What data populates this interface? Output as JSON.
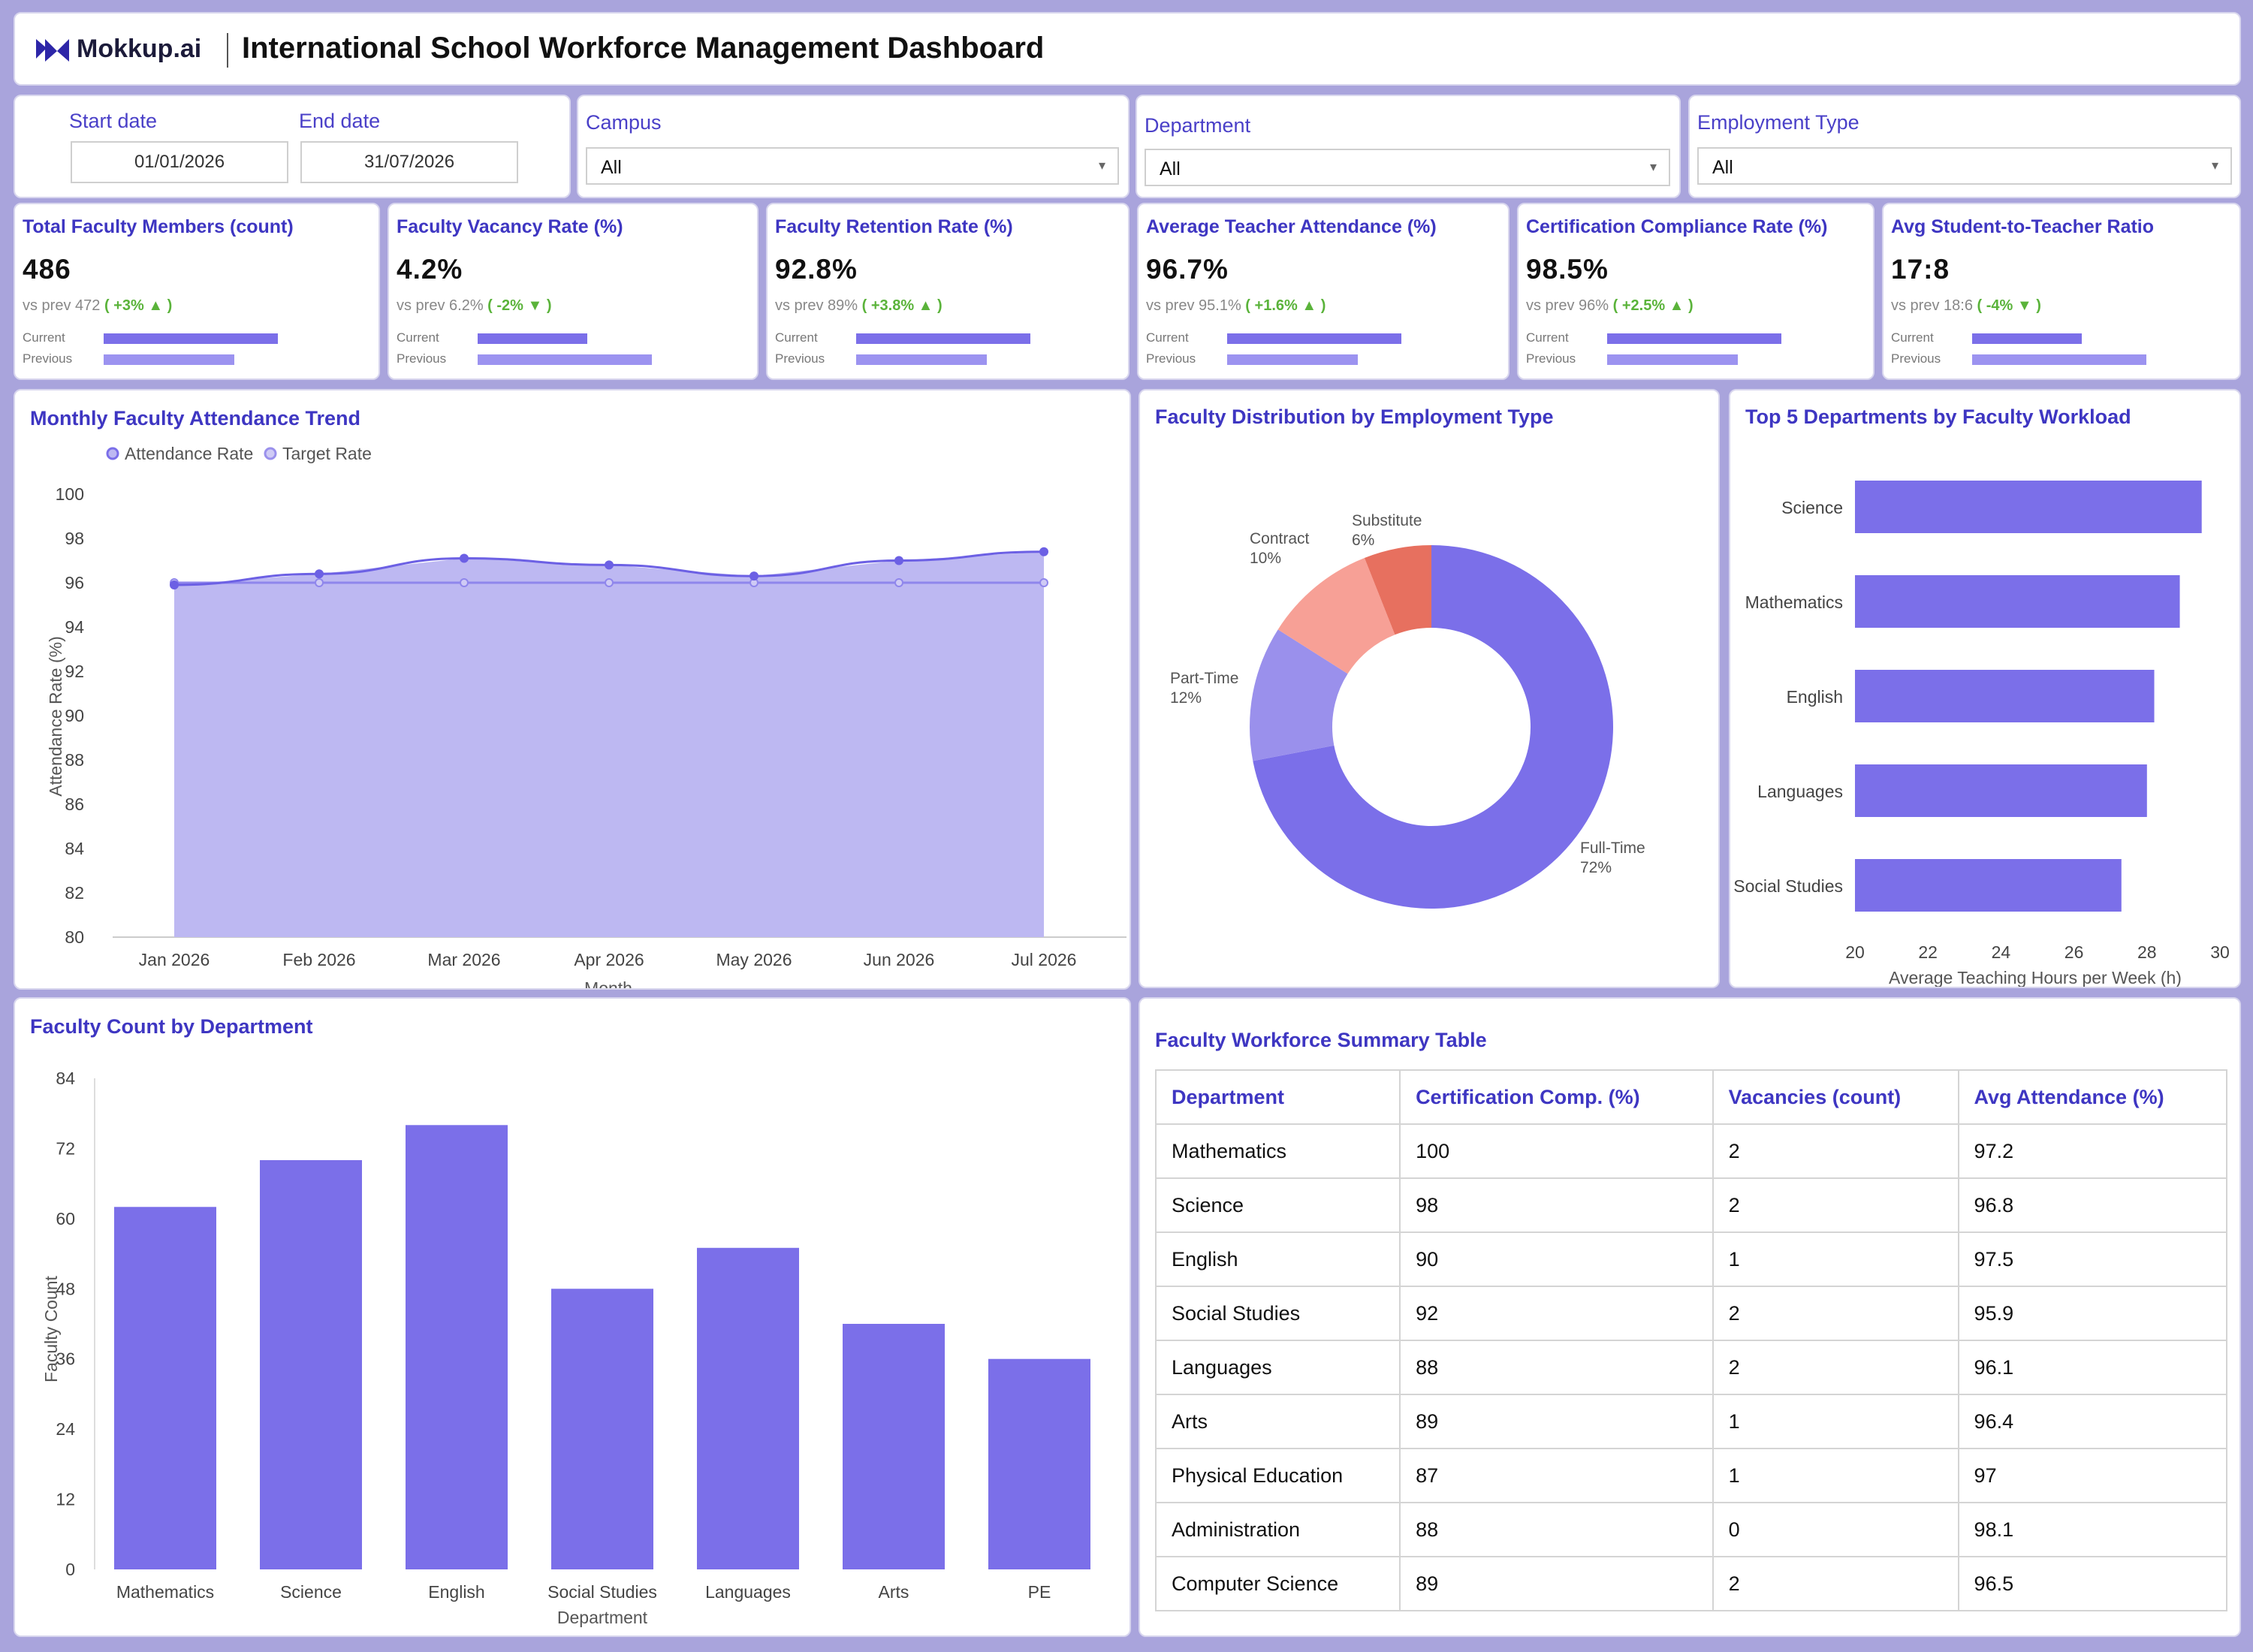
{
  "header": {
    "logo_text": "Mokkup.ai",
    "title": "International School Workforce Management Dashboard"
  },
  "filters": {
    "start_label": "Start date",
    "start_value": "01/01/2026",
    "end_label": "End date",
    "end_value": "31/07/2026",
    "campus_label": "Campus",
    "campus_value": "All",
    "department_label": "Department",
    "department_value": "All",
    "employment_label": "Employment Type",
    "employment_value": "All"
  },
  "kpis": [
    {
      "title": "Total Faculty Members (count)",
      "value": "486",
      "prev": "vs prev 472",
      "delta": "( +3% ▲ )",
      "current_label": "Current",
      "previous_label": "Previous",
      "current_frac": 1.0,
      "previous_frac": 0.75
    },
    {
      "title": "Faculty Vacancy Rate (%)",
      "value": "4.2%",
      "prev": "vs prev 6.2%",
      "delta": "( -2% ▼ )",
      "current_label": "Current",
      "previous_label": "Previous",
      "current_frac": 0.63,
      "previous_frac": 1.0
    },
    {
      "title": "Faculty Retention Rate (%)",
      "value": "92.8%",
      "prev": "vs prev 89%",
      "delta": "( +3.8% ▲ )",
      "current_label": "Current",
      "previous_label": "Previous",
      "current_frac": 1.0,
      "previous_frac": 0.75
    },
    {
      "title": "Average Teacher Attendance (%)",
      "value": "96.7%",
      "prev": "vs prev 95.1%",
      "delta": "( +1.6% ▲ )",
      "current_label": "Current",
      "previous_label": "Previous",
      "current_frac": 1.0,
      "previous_frac": 0.75
    },
    {
      "title": "Certification Compliance Rate (%)",
      "value": "98.5%",
      "prev": "vs prev 96%",
      "delta": "( +2.5% ▲ )",
      "current_label": "Current",
      "previous_label": "Previous",
      "current_frac": 1.0,
      "previous_frac": 0.75
    },
    {
      "title": "Avg Student-to-Teacher Ratio",
      "value": "17:8",
      "prev": "vs prev 18:6",
      "delta": "( -4% ▼ )",
      "current_label": "Current",
      "previous_label": "Previous",
      "current_frac": 0.63,
      "previous_frac": 1.0
    }
  ],
  "colors": {
    "accent": "#3e36c2",
    "bar": "#7b6fe9",
    "positive": "#5ab33a"
  },
  "chart_data": [
    {
      "type": "area",
      "title": "Monthly Faculty Attendance Trend",
      "xlabel": "Month",
      "ylabel": "Attendance Rate (%)",
      "categories": [
        "Jan 2026",
        "Feb 2026",
        "Mar 2026",
        "Apr 2026",
        "May 2026",
        "Jun 2026",
        "Jul 2026"
      ],
      "series": [
        {
          "name": "Attendance Rate",
          "values": [
            95.9,
            96.4,
            97.1,
            96.8,
            96.3,
            97.0,
            97.4
          ]
        },
        {
          "name": "Target Rate",
          "values": [
            96,
            96,
            96,
            96,
            96,
            96,
            96
          ]
        }
      ],
      "yticks": [
        "80",
        "82",
        "84",
        "86",
        "88",
        "90",
        "92",
        "94",
        "96",
        "98",
        "100"
      ],
      "ylim": [
        80,
        100
      ],
      "legend": "top-left"
    },
    {
      "type": "pie",
      "title": "Faculty Distribution by Employment Type",
      "slices": [
        {
          "name": "Full-Time",
          "label": "72%",
          "value": 72
        },
        {
          "name": "Part-Time",
          "label": "12%",
          "value": 12
        },
        {
          "name": "Contract",
          "label": "10%",
          "value": 10
        },
        {
          "name": "Substitute",
          "label": "6%",
          "value": 6
        }
      ],
      "colors": [
        "#7b6fe9",
        "#9a90ec",
        "#f7a096",
        "#e7705f"
      ]
    },
    {
      "type": "bar",
      "orientation": "horizontal",
      "title": "Top 5 Departments by Faculty Workload",
      "xlabel": "Average Teaching Hours per Week (h)",
      "categories": [
        "Science",
        "Mathematics",
        "English",
        "Languages",
        "Social Studies"
      ],
      "values": [
        29.5,
        28.9,
        28.2,
        28.0,
        27.3
      ],
      "xticks": [
        "20",
        "22",
        "24",
        "26",
        "28",
        "30"
      ],
      "xlim": [
        20,
        30
      ]
    },
    {
      "type": "bar",
      "title": "Faculty Count by Department",
      "xlabel": "Department",
      "ylabel": "Faculty Count",
      "categories": [
        "Mathematics",
        "Science",
        "English",
        "Social Studies",
        "Languages",
        "Arts",
        "PE"
      ],
      "values": [
        62,
        70,
        76,
        48,
        55,
        42,
        36
      ],
      "yticks": [
        "0",
        "12",
        "24",
        "36",
        "48",
        "60",
        "72",
        "84"
      ],
      "ylim": [
        0,
        84
      ]
    }
  ],
  "table": {
    "title": "Faculty Workforce Summary Table",
    "columns": [
      "Department",
      "Certification Comp. (%)",
      "Vacancies (count)",
      "Avg Attendance (%)"
    ],
    "rows": [
      [
        "Mathematics",
        "100",
        "2",
        "97.2"
      ],
      [
        "Science",
        "98",
        "2",
        "96.8"
      ],
      [
        "English",
        "90",
        "1",
        "97.5"
      ],
      [
        "Social Studies",
        "92",
        "2",
        "95.9"
      ],
      [
        "Languages",
        "88",
        "2",
        "96.1"
      ],
      [
        "Arts",
        "89",
        "1",
        "96.4"
      ],
      [
        "Physical Education",
        "87",
        "1",
        "97"
      ],
      [
        "Administration",
        "88",
        "0",
        "98.1"
      ],
      [
        "Computer Science",
        "89",
        "2",
        "96.5"
      ]
    ]
  }
}
